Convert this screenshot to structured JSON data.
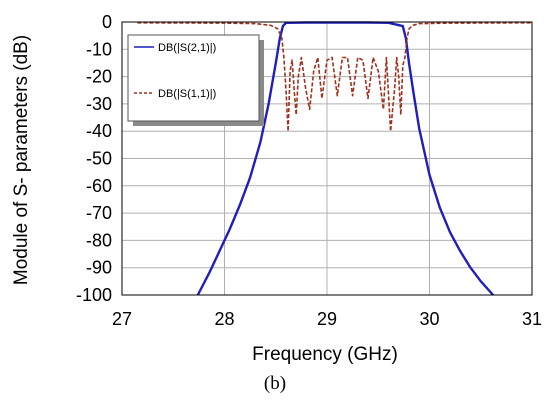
{
  "chart_data": {
    "type": "line",
    "xlabel": "Frequency (GHz)",
    "ylabel": "Module of S- parameters (dB)",
    "xlim": [
      27,
      31
    ],
    "ylim": [
      -100,
      0
    ],
    "xticks": [
      "27",
      "28",
      "29",
      "30",
      "31"
    ],
    "yticks": [
      "0",
      "-10",
      "-20",
      "-30",
      "-40",
      "-50",
      "-60",
      "-70",
      "-80",
      "-90",
      "-100"
    ],
    "grid": true,
    "legend_position": "top-left",
    "caption": "(b)",
    "series": [
      {
        "name": "DB(|S(2,1)|)",
        "color": "#1f1fbf",
        "style": "solid",
        "x": [
          27.74,
          27.85,
          27.95,
          28.05,
          28.15,
          28.25,
          28.35,
          28.43,
          28.5,
          28.54,
          28.57,
          28.6,
          28.8,
          29.0,
          29.2,
          29.4,
          29.6,
          29.74,
          29.77,
          29.8,
          29.84,
          29.9,
          30.0,
          30.1,
          30.2,
          30.3,
          30.4,
          30.5,
          30.62
        ],
        "y": [
          -100,
          -92,
          -84,
          -76,
          -67,
          -57,
          -44,
          -30,
          -15,
          -6,
          -1.5,
          -0.3,
          -0.2,
          -0.2,
          -0.2,
          -0.2,
          -0.3,
          -1.5,
          -6,
          -15,
          -25,
          -39,
          -56,
          -68,
          -77,
          -84,
          -90,
          -95,
          -100
        ]
      },
      {
        "name": "DB(|S(1,1)|)",
        "color": "#a0301e",
        "style": "dashed",
        "x": [
          27.15,
          28.0,
          28.3,
          28.45,
          28.52,
          28.56,
          28.58,
          28.6,
          28.62,
          28.64,
          28.66,
          28.68,
          28.7,
          28.72,
          28.75,
          28.79,
          28.83,
          28.87,
          28.91,
          28.95,
          29.0,
          29.05,
          29.1,
          29.15,
          29.2,
          29.25,
          29.3,
          29.35,
          29.4,
          29.45,
          29.5,
          29.55,
          29.58,
          29.62,
          29.66,
          29.68,
          29.7,
          29.72,
          29.74,
          29.76,
          29.78,
          29.8,
          29.84,
          29.9,
          30.2,
          31.0
        ],
        "y": [
          -0.3,
          -0.4,
          -0.6,
          -1.2,
          -2.5,
          -6,
          -13,
          -25,
          -40,
          -18,
          -14,
          -25,
          -34,
          -20,
          -13,
          -24,
          -32,
          -18,
          -13,
          -28,
          -14,
          -13,
          -27,
          -13,
          -13,
          -27,
          -13,
          -14,
          -28,
          -13,
          -18,
          -32,
          -13,
          -40,
          -24,
          -13,
          -20,
          -34,
          -16,
          -13,
          -6,
          -2.5,
          -1.2,
          -0.6,
          -0.4,
          -0.3
        ]
      }
    ]
  }
}
